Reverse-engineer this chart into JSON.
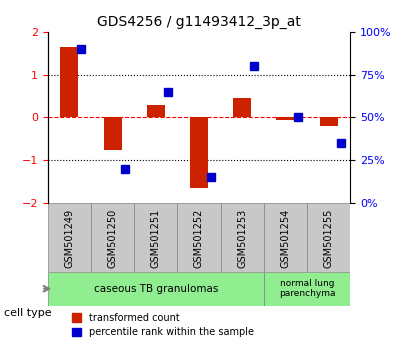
{
  "title": "GDS4256 / g11493412_3p_at",
  "samples": [
    "GSM501249",
    "GSM501250",
    "GSM501251",
    "GSM501252",
    "GSM501253",
    "GSM501254",
    "GSM501255"
  ],
  "red_values": [
    1.65,
    -0.75,
    0.3,
    -1.65,
    0.45,
    -0.05,
    -0.2
  ],
  "blue_values": [
    90,
    20,
    65,
    15,
    80,
    50,
    35
  ],
  "ylim_left": [
    -2,
    2
  ],
  "ylim_right": [
    0,
    100
  ],
  "yticks_left": [
    -2,
    -1,
    0,
    1,
    2
  ],
  "yticks_right": [
    0,
    25,
    50,
    75,
    100
  ],
  "ytick_labels_right": [
    "0%",
    "25%",
    "50%",
    "75%",
    "100%"
  ],
  "bar_width": 0.35,
  "red_color": "#CC2200",
  "blue_color": "#0000CC",
  "background_xtick": "#C8C8C8",
  "cell_group1_label": "caseous TB granulomas",
  "cell_group2_label": "normal lung\nparenchyma",
  "cell_color": "#90EE90",
  "legend_red": "transformed count",
  "legend_blue": "percentile rank within the sample",
  "cell_type_label": "cell type"
}
